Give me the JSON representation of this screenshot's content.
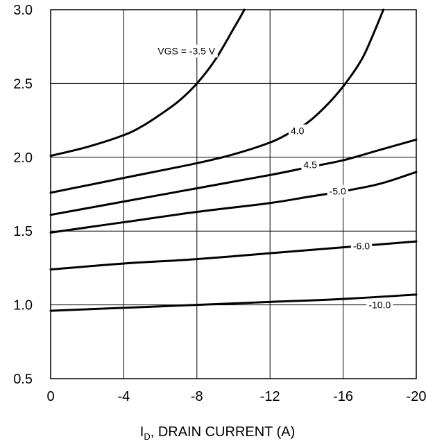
{
  "chart_data": {
    "type": "line",
    "title": "",
    "xlabel_prefix": "I",
    "xlabel_sub": "D",
    "xlabel_rest": ", DRAIN CURRENT (A)",
    "ylabel": "",
    "xlim": [
      0,
      -20
    ],
    "ylim": [
      0.5,
      3.0
    ],
    "x_ticks": [
      0,
      -4,
      -8,
      -12,
      -16,
      -20
    ],
    "x_tick_labels": [
      "0",
      "-4",
      "-8",
      "-12",
      "-16",
      "-20"
    ],
    "y_ticks": [
      0.5,
      1.0,
      1.5,
      2.0,
      2.5,
      3.0
    ],
    "y_tick_labels": [
      "0.5",
      "1.0",
      "1.5",
      "2.0",
      "2.5",
      "3.0"
    ],
    "grid": true,
    "line_color": "#000000",
    "series": [
      {
        "name": "VGS = -3.5 V",
        "x": [
          0,
          -2,
          -4,
          -5,
          -6,
          -7,
          -8,
          -9,
          -10,
          -10.6
        ],
        "y": [
          2.01,
          2.07,
          2.15,
          2.21,
          2.29,
          2.38,
          2.5,
          2.66,
          2.87,
          3.0
        ],
        "label_x": -9.0,
        "label_y": 2.72,
        "label_anchor": "end"
      },
      {
        "name": "4.0",
        "x": [
          0,
          -4,
          -8,
          -10,
          -12,
          -13,
          -14,
          -15,
          -16,
          -17,
          -17.6,
          -18.2
        ],
        "y": [
          1.76,
          1.86,
          1.96,
          2.02,
          2.1,
          2.16,
          2.23,
          2.34,
          2.48,
          2.66,
          2.82,
          3.0
        ],
        "label_x": -13.5,
        "label_y": 2.18,
        "label_anchor": "middle"
      },
      {
        "name": "4.5",
        "x": [
          0,
          -4,
          -8,
          -12,
          -14,
          -16,
          -18,
          -20
        ],
        "y": [
          1.61,
          1.7,
          1.79,
          1.88,
          1.93,
          1.98,
          2.05,
          2.12
        ],
        "label_x": -14.2,
        "label_y": 1.95,
        "label_anchor": "middle"
      },
      {
        "name": "-5.0",
        "x": [
          0,
          -4,
          -8,
          -12,
          -14,
          -16,
          -18,
          -20
        ],
        "y": [
          1.49,
          1.56,
          1.63,
          1.69,
          1.73,
          1.77,
          1.82,
          1.9
        ],
        "label_x": -15.7,
        "label_y": 1.77,
        "label_anchor": "middle"
      },
      {
        "name": "-6.0",
        "x": [
          0,
          -4,
          -8,
          -12,
          -16,
          -20
        ],
        "y": [
          1.24,
          1.28,
          1.31,
          1.35,
          1.39,
          1.43
        ],
        "label_x": -17.0,
        "label_y": 1.4,
        "label_anchor": "middle"
      },
      {
        "name": "-10.0",
        "x": [
          0,
          -4,
          -8,
          -12,
          -16,
          -20
        ],
        "y": [
          0.96,
          0.98,
          1.0,
          1.02,
          1.04,
          1.07
        ],
        "label_x": -18.0,
        "label_y": 1.0,
        "label_anchor": "middle"
      }
    ]
  }
}
